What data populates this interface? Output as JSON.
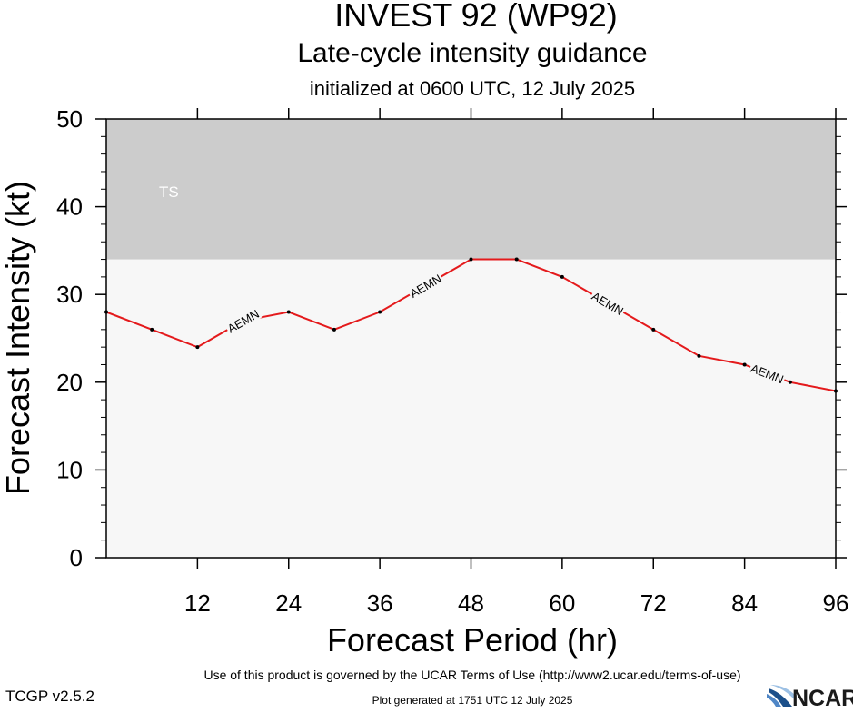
{
  "header": {
    "title": "INVEST 92 (WP92)",
    "subtitle": "Late-cycle intensity guidance",
    "initialized": "initialized at 0600 UTC, 12 July 2025"
  },
  "footer": {
    "terms": "Use of this product is governed by the UCAR Terms of Use (http://www2.ucar.edu/terms-of-use)",
    "version": "TCGP v2.5.2",
    "generated": "Plot generated at 1751 UTC   12 July 2025",
    "logo_text": "NCAR"
  },
  "chart_data": {
    "type": "line",
    "xlabel": "Forecast Period (hr)",
    "ylabel": "Forecast Intensity (kt)",
    "xlim": [
      0,
      96
    ],
    "ylim": [
      0,
      50
    ],
    "xticks": [
      12,
      24,
      36,
      48,
      60,
      72,
      84,
      96
    ],
    "yticks": [
      0,
      10,
      20,
      30,
      40,
      50
    ],
    "grid": false,
    "bands": [
      {
        "label": "TS",
        "y_from": 34,
        "y_to": 50,
        "color": "#cccccc"
      }
    ],
    "background_color": "#f7f7f7",
    "series": [
      {
        "name": "AEMN",
        "color": "#e41a1c",
        "x": [
          0,
          6,
          12,
          18,
          24,
          30,
          36,
          42,
          48,
          54,
          60,
          66,
          72,
          78,
          84,
          90,
          96
        ],
        "y": [
          28,
          26,
          24,
          27,
          28,
          26,
          28,
          31,
          34,
          34,
          32,
          29,
          26,
          23,
          22,
          20,
          19
        ],
        "line_labels_at_x": [
          18,
          42,
          66,
          87
        ]
      }
    ]
  }
}
